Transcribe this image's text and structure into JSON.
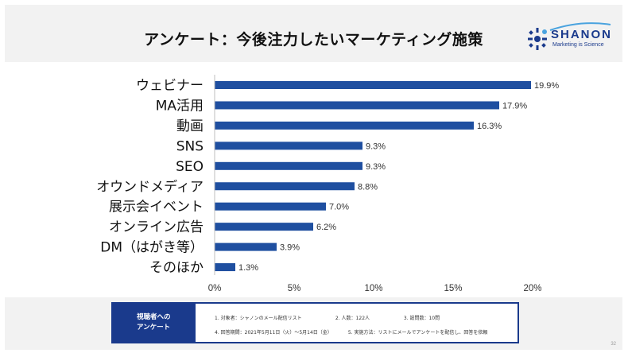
{
  "header": {
    "title": "アンケート：今後注力したいマーケティング施策",
    "logo": {
      "wordmark": "SHANON",
      "tagline": "Marketing is Science",
      "accent": "#1a3a8c"
    }
  },
  "chart_data": {
    "type": "bar",
    "orientation": "horizontal",
    "title": "アンケート：今後注力したいマーケティング施策",
    "categories": [
      "ウェビナー",
      "MA活用",
      "動画",
      "SNS",
      "SEO",
      "オウンドメディア",
      "展示会イベント",
      "オンライン広告",
      "DM（はがき等）",
      "そのほか"
    ],
    "values": [
      19.9,
      17.9,
      16.3,
      9.3,
      9.3,
      8.8,
      7.0,
      6.2,
      3.9,
      1.3
    ],
    "value_labels": [
      "19.9%",
      "17.9%",
      "16.3%",
      "9.3%",
      "9.3%",
      "8.8%",
      "7.0%",
      "6.2%",
      "3.9%",
      "1.3%"
    ],
    "xlim": [
      0,
      20
    ],
    "xticks": [
      0,
      5,
      10,
      15,
      20
    ],
    "xtick_labels": [
      "0%",
      "5%",
      "10%",
      "15%",
      "20%"
    ],
    "xlabel": "",
    "ylabel": "",
    "bar_color": "#1f4fa0",
    "grid": false
  },
  "footer": {
    "box_title_line1": "視聴者への",
    "box_title_line2": "アンケート",
    "item1": "1.  対象者：シャノンのメール配信リスト",
    "item2": "2.  人数：122人",
    "item3": "3.  設問数：10問",
    "item4": "4.  回答期間：2021年5月11日（火）～5月14日（金）",
    "item5": "5.  実施方法：リストにメールでアンケートを配信し、回答を依頼",
    "page_number": "32"
  }
}
